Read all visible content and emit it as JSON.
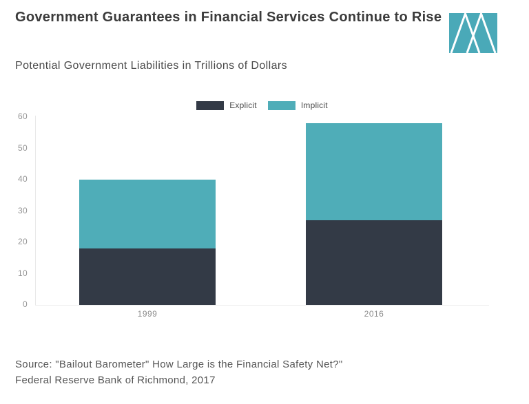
{
  "header": {
    "title": "Government Guarantees in Financial Services Continue to Rise",
    "subtitle": "Potential Government Liabilities in Trillions of Dollars"
  },
  "colors": {
    "explicit": "#333a46",
    "implicit": "#4fadb8",
    "logo_teal": "#4aa9b8",
    "axis_line": "#e8e8e8",
    "tick_text": "#949494"
  },
  "chart_data": {
    "type": "bar",
    "stacked": true,
    "title": "Government Guarantees in Financial Services Continue to Rise",
    "subtitle": "Potential Government Liabilities in Trillions of Dollars",
    "categories": [
      "1999",
      "2016"
    ],
    "series": [
      {
        "name": "Explicit",
        "color": "#333a46",
        "values": [
          18,
          27
        ]
      },
      {
        "name": "Implicit",
        "color": "#4fadb8",
        "values": [
          22,
          31
        ]
      }
    ],
    "totals": [
      40,
      58
    ],
    "xlabel": "",
    "ylabel": "",
    "ylim": [
      0,
      60
    ],
    "yticks": [
      0,
      10,
      20,
      30,
      40,
      50,
      60
    ],
    "grid": false,
    "legend_position": "top-center"
  },
  "source": {
    "line1": "Source: \"Bailout Barometer\" How Large is the Financial Safety Net?\"",
    "line2": "Federal Reserve Bank of Richmond, 2017"
  }
}
